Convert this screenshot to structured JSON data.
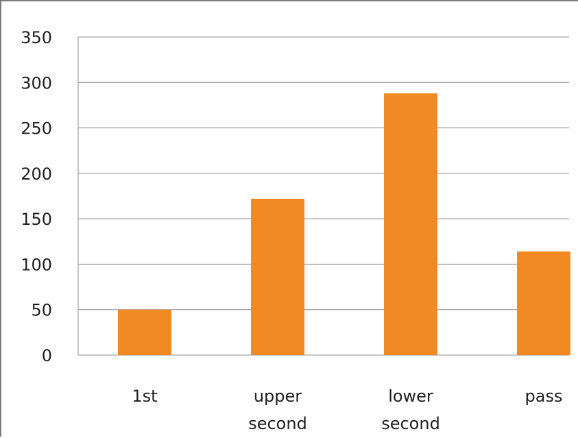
{
  "chart_data": {
    "type": "bar",
    "categories": [
      {
        "lines": [
          "1st"
        ]
      },
      {
        "lines": [
          "upper",
          "second"
        ]
      },
      {
        "lines": [
          "lower",
          "second"
        ]
      },
      {
        "lines": [
          "pass"
        ]
      }
    ],
    "values": [
      50,
      172,
      288,
      114
    ],
    "ylim": [
      0,
      350
    ],
    "yticks": [
      0,
      50,
      100,
      150,
      200,
      250,
      300,
      350
    ],
    "grid": true,
    "bar_color": "#f28a24",
    "grid_color": "#8c8c8c"
  }
}
